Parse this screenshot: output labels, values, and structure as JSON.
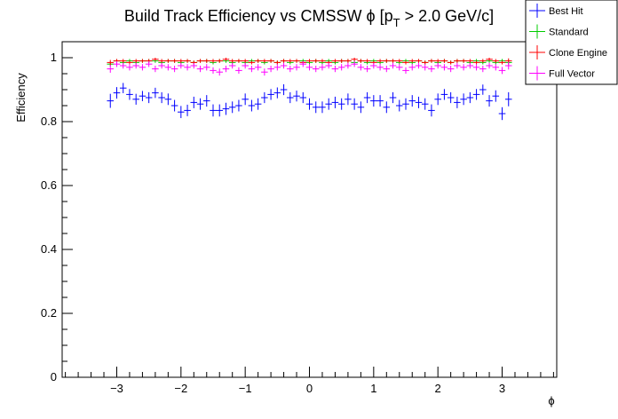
{
  "chart_data": {
    "type": "scatter",
    "title": {
      "prefix": "Build Track Efficiency vs CMSSW ",
      "phi": "ϕ",
      "mid": " [p",
      "sub": "T",
      "suffix": " > 2.0 GeV/c]"
    },
    "xlabel": "ϕ",
    "ylabel": "Efficiency",
    "xlim": [
      -3.85,
      3.85
    ],
    "ylim": [
      0,
      1.05
    ],
    "x_ticks": [
      -3,
      -2,
      -1,
      0,
      1,
      2,
      3
    ],
    "x_tick_labels": [
      "−3",
      "−2",
      "−1",
      "0",
      "1",
      "2",
      "3"
    ],
    "y_ticks": [
      0,
      0.2,
      0.4,
      0.6,
      0.8,
      1
    ],
    "y_tick_labels": [
      "0",
      "0.2",
      "0.4",
      "0.6",
      "0.8",
      "1"
    ],
    "grid": false,
    "legend_position": "top-right",
    "bin_half_width": 0.0524,
    "x": [
      -3.1,
      -3.0,
      -2.9,
      -2.8,
      -2.7,
      -2.6,
      -2.5,
      -2.4,
      -2.3,
      -2.2,
      -2.1,
      -2.0,
      -1.9,
      -1.8,
      -1.7,
      -1.6,
      -1.5,
      -1.4,
      -1.3,
      -1.2,
      -1.1,
      -1.0,
      -0.9,
      -0.8,
      -0.7,
      -0.6,
      -0.5,
      -0.4,
      -0.3,
      -0.2,
      -0.1,
      0.0,
      0.1,
      0.2,
      0.3,
      0.4,
      0.5,
      0.6,
      0.7,
      0.8,
      0.9,
      1.0,
      1.1,
      1.2,
      1.3,
      1.4,
      1.5,
      1.6,
      1.7,
      1.8,
      1.9,
      2.0,
      2.1,
      2.2,
      2.3,
      2.4,
      2.5,
      2.6,
      2.7,
      2.8,
      2.9,
      3.0,
      3.1
    ],
    "series": [
      {
        "name": "Best Hit",
        "color": "#0000ff",
        "values": [
          0.865,
          0.89,
          0.905,
          0.885,
          0.87,
          0.88,
          0.875,
          0.89,
          0.875,
          0.87,
          0.85,
          0.83,
          0.835,
          0.86,
          0.855,
          0.865,
          0.835,
          0.835,
          0.84,
          0.845,
          0.85,
          0.87,
          0.85,
          0.855,
          0.875,
          0.885,
          0.89,
          0.9,
          0.875,
          0.88,
          0.875,
          0.855,
          0.845,
          0.845,
          0.855,
          0.86,
          0.855,
          0.87,
          0.855,
          0.845,
          0.875,
          0.865,
          0.865,
          0.845,
          0.875,
          0.85,
          0.855,
          0.865,
          0.86,
          0.855,
          0.835,
          0.87,
          0.885,
          0.875,
          0.86,
          0.87,
          0.875,
          0.885,
          0.9,
          0.865,
          0.88,
          0.825,
          0.87
        ],
        "err": [
          0.022,
          0.018,
          0.016,
          0.017,
          0.017,
          0.016,
          0.017,
          0.016,
          0.017,
          0.018,
          0.018,
          0.019,
          0.018,
          0.018,
          0.018,
          0.018,
          0.019,
          0.019,
          0.019,
          0.018,
          0.018,
          0.018,
          0.018,
          0.018,
          0.017,
          0.017,
          0.017,
          0.017,
          0.017,
          0.017,
          0.017,
          0.018,
          0.018,
          0.018,
          0.018,
          0.018,
          0.018,
          0.018,
          0.018,
          0.018,
          0.017,
          0.018,
          0.018,
          0.018,
          0.017,
          0.018,
          0.018,
          0.018,
          0.018,
          0.018,
          0.019,
          0.018,
          0.017,
          0.017,
          0.018,
          0.018,
          0.017,
          0.017,
          0.016,
          0.018,
          0.018,
          0.02,
          0.022
        ]
      },
      {
        "name": "Standard",
        "color": "#00cc00",
        "values": [
          0.98,
          0.99,
          0.985,
          0.99,
          0.985,
          0.99,
          0.99,
          0.99,
          0.985,
          0.99,
          0.99,
          0.985,
          0.99,
          0.985,
          0.99,
          0.99,
          0.985,
          0.99,
          0.99,
          0.985,
          0.99,
          0.985,
          0.99,
          0.99,
          0.985,
          0.99,
          0.985,
          0.99,
          0.985,
          0.99,
          0.99,
          0.985,
          0.99,
          0.985,
          0.99,
          0.985,
          0.99,
          0.99,
          0.985,
          0.99,
          0.985,
          0.99,
          0.985,
          0.99,
          0.99,
          0.985,
          0.99,
          0.985,
          0.99,
          0.985,
          0.99,
          0.985,
          0.99,
          0.985,
          0.99,
          0.99,
          0.985,
          0.99,
          0.985,
          0.99,
          0.985,
          0.99,
          0.985
        ],
        "err": [
          0.008,
          0.006,
          0.006,
          0.006,
          0.006,
          0.006,
          0.006,
          0.006,
          0.006,
          0.006,
          0.006,
          0.006,
          0.006,
          0.006,
          0.006,
          0.006,
          0.006,
          0.006,
          0.006,
          0.006,
          0.006,
          0.006,
          0.006,
          0.006,
          0.006,
          0.006,
          0.006,
          0.006,
          0.006,
          0.006,
          0.006,
          0.006,
          0.006,
          0.006,
          0.006,
          0.006,
          0.006,
          0.006,
          0.006,
          0.006,
          0.006,
          0.006,
          0.006,
          0.006,
          0.006,
          0.006,
          0.006,
          0.006,
          0.006,
          0.006,
          0.006,
          0.006,
          0.006,
          0.006,
          0.006,
          0.006,
          0.006,
          0.006,
          0.006,
          0.006,
          0.006,
          0.006,
          0.008
        ]
      },
      {
        "name": "Clone Engine",
        "color": "#ff0000",
        "values": [
          0.985,
          0.99,
          0.99,
          0.985,
          0.99,
          0.99,
          0.99,
          0.995,
          0.99,
          0.99,
          0.99,
          0.99,
          0.99,
          0.985,
          0.99,
          0.99,
          0.99,
          0.99,
          0.995,
          0.99,
          0.99,
          0.99,
          0.985,
          0.99,
          0.99,
          0.99,
          0.985,
          0.99,
          0.99,
          0.99,
          0.985,
          0.99,
          0.99,
          0.99,
          0.985,
          0.99,
          0.99,
          0.99,
          0.995,
          0.99,
          0.99,
          0.985,
          0.99,
          0.99,
          0.99,
          0.99,
          0.985,
          0.99,
          0.99,
          0.985,
          0.99,
          0.99,
          0.99,
          0.985,
          0.99,
          0.99,
          0.99,
          0.985,
          0.99,
          0.995,
          0.99,
          0.985,
          0.99
        ],
        "err": [
          0.008,
          0.006,
          0.006,
          0.006,
          0.006,
          0.006,
          0.006,
          0.005,
          0.006,
          0.006,
          0.006,
          0.006,
          0.006,
          0.006,
          0.006,
          0.006,
          0.006,
          0.006,
          0.005,
          0.006,
          0.006,
          0.006,
          0.006,
          0.006,
          0.006,
          0.006,
          0.006,
          0.006,
          0.006,
          0.006,
          0.006,
          0.006,
          0.006,
          0.006,
          0.006,
          0.006,
          0.006,
          0.006,
          0.005,
          0.006,
          0.006,
          0.006,
          0.006,
          0.006,
          0.006,
          0.006,
          0.006,
          0.006,
          0.006,
          0.006,
          0.006,
          0.006,
          0.006,
          0.006,
          0.006,
          0.006,
          0.006,
          0.006,
          0.006,
          0.005,
          0.006,
          0.006,
          0.008
        ]
      },
      {
        "name": "Full Vector",
        "color": "#ff00ff",
        "values": [
          0.965,
          0.98,
          0.975,
          0.97,
          0.975,
          0.97,
          0.98,
          0.965,
          0.975,
          0.97,
          0.965,
          0.975,
          0.97,
          0.975,
          0.965,
          0.97,
          0.96,
          0.955,
          0.965,
          0.975,
          0.96,
          0.975,
          0.965,
          0.97,
          0.955,
          0.965,
          0.97,
          0.975,
          0.965,
          0.97,
          0.98,
          0.97,
          0.965,
          0.97,
          0.975,
          0.965,
          0.97,
          0.975,
          0.98,
          0.97,
          0.965,
          0.975,
          0.97,
          0.965,
          0.975,
          0.97,
          0.96,
          0.97,
          0.975,
          0.97,
          0.965,
          0.975,
          0.97,
          0.965,
          0.975,
          0.97,
          0.975,
          0.97,
          0.965,
          0.975,
          0.97,
          0.96,
          0.975
        ],
        "err": [
          0.012,
          0.009,
          0.009,
          0.01,
          0.009,
          0.01,
          0.009,
          0.01,
          0.009,
          0.01,
          0.01,
          0.009,
          0.01,
          0.009,
          0.01,
          0.01,
          0.01,
          0.011,
          0.01,
          0.009,
          0.01,
          0.009,
          0.01,
          0.01,
          0.011,
          0.01,
          0.01,
          0.009,
          0.01,
          0.01,
          0.009,
          0.01,
          0.01,
          0.01,
          0.009,
          0.01,
          0.01,
          0.009,
          0.009,
          0.01,
          0.01,
          0.009,
          0.01,
          0.01,
          0.009,
          0.01,
          0.01,
          0.01,
          0.009,
          0.01,
          0.01,
          0.009,
          0.01,
          0.01,
          0.009,
          0.01,
          0.009,
          0.01,
          0.01,
          0.009,
          0.01,
          0.011,
          0.012
        ]
      }
    ]
  }
}
